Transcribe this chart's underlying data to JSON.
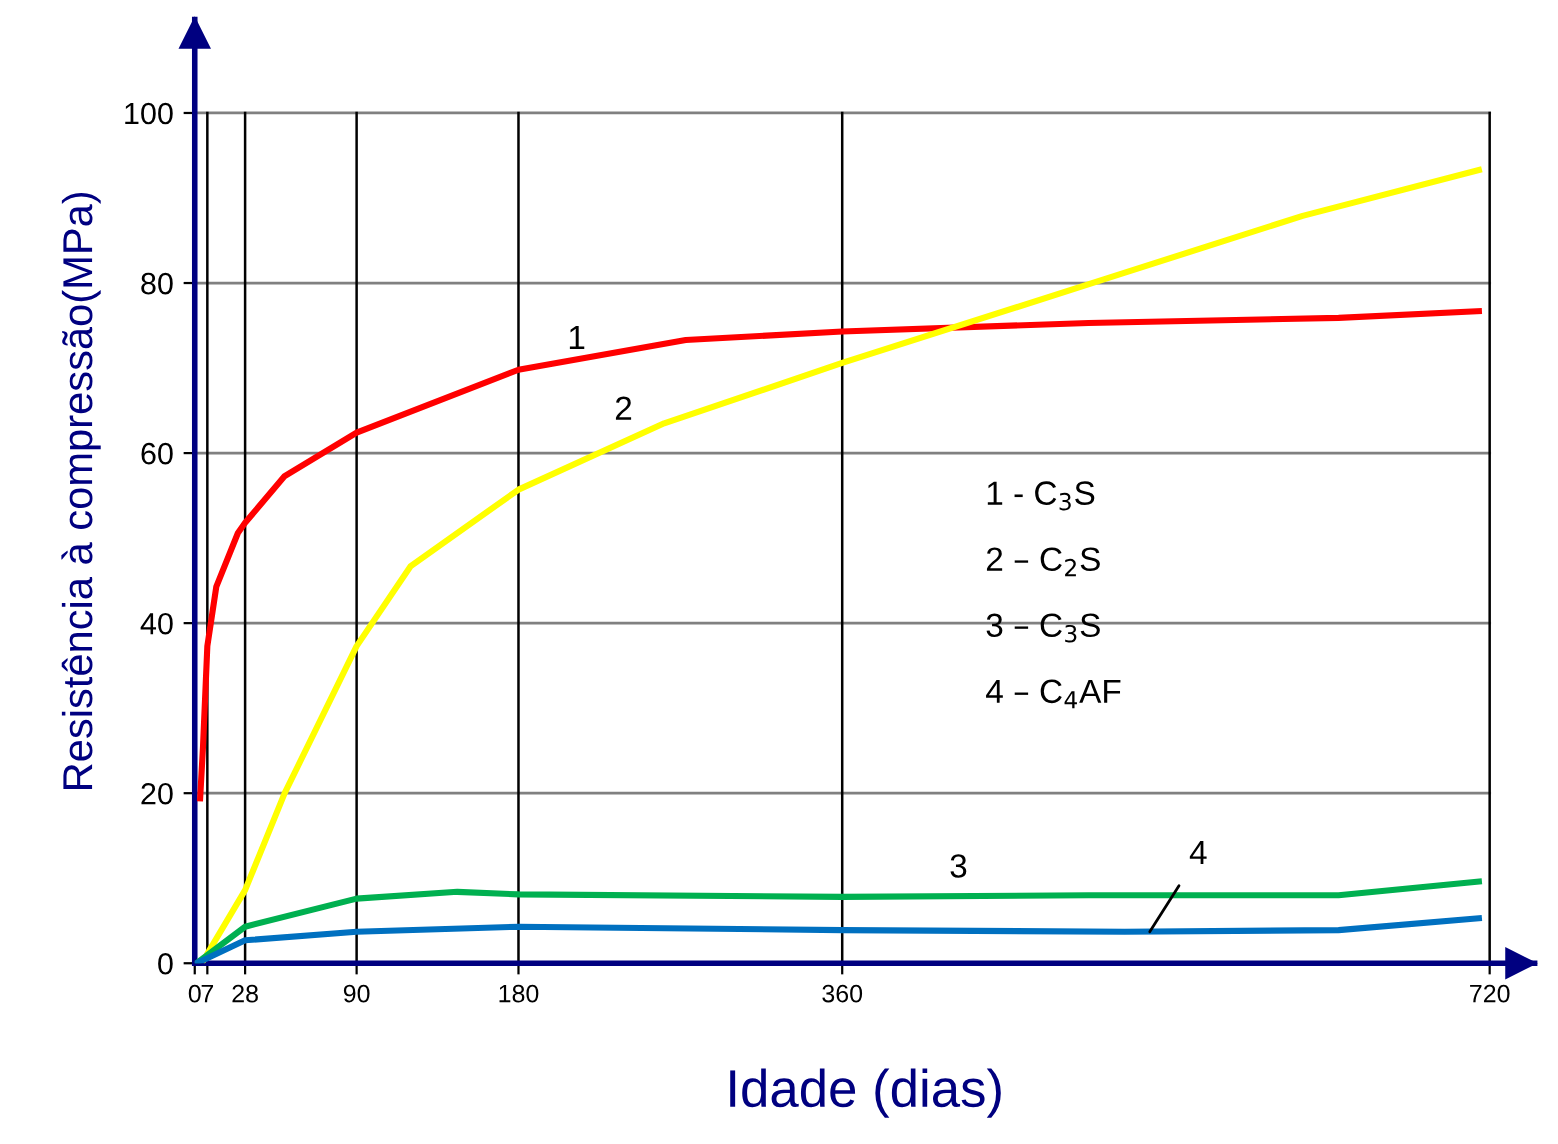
{
  "chart_data": {
    "type": "line",
    "xlabel": "Idade (dias)",
    "ylabel": "Resistência à compressão(MPa)",
    "xlim": [
      0,
      745
    ],
    "xticks": [
      0,
      7,
      28,
      90,
      180,
      360,
      720
    ],
    "ylim": [
      0,
      111
    ],
    "yticks": [
      0,
      20,
      40,
      60,
      80,
      100
    ],
    "grid": true,
    "line_style": "solid",
    "marker": "none",
    "series": [
      {
        "color": "#ff0000",
        "x": [
          3,
          4.6,
          7,
          12,
          24,
          28,
          50,
          90,
          180,
          273,
          360,
          497,
          636,
          714
        ],
        "values": [
          19.4,
          25.5,
          37.3,
          44.3,
          50.6,
          51.8,
          57.3,
          62.4,
          69.8,
          73.3,
          74.3,
          75.3,
          75.9,
          76.7
        ]
      },
      {
        "color": "#ffff00",
        "x": [
          5,
          28,
          50,
          90,
          120,
          180,
          261,
          360,
          505,
          616,
          714
        ],
        "values": [
          0.4,
          8.6,
          20,
          37.3,
          46.7,
          55.7,
          63.5,
          70.6,
          80.4,
          87.9,
          93.3
        ]
      },
      {
        "color": "#00b050",
        "x": [
          1,
          28,
          90,
          146,
          180,
          360,
          497,
          636,
          714
        ],
        "values": [
          0,
          4.3,
          7.6,
          8.4,
          8.1,
          7.8,
          8.0,
          8.0,
          9.6
        ]
      },
      {
        "color": "#0070c0",
        "x": [
          1,
          28,
          90,
          180,
          360,
          517,
          636,
          714
        ],
        "values": [
          0,
          2.7,
          3.7,
          4.3,
          3.9,
          3.7,
          3.9,
          5.3
        ]
      }
    ],
    "annotations": [
      "1",
      "2",
      "3",
      {
        "text": "4",
        "x": 531,
        "y": 3.7
      },
      "1 - C$_{3}$S",
      "2 – C$_{2}$S",
      "3 – C$_{3}$S",
      "4 – C$_{4}$AF"
    ]
  }
}
